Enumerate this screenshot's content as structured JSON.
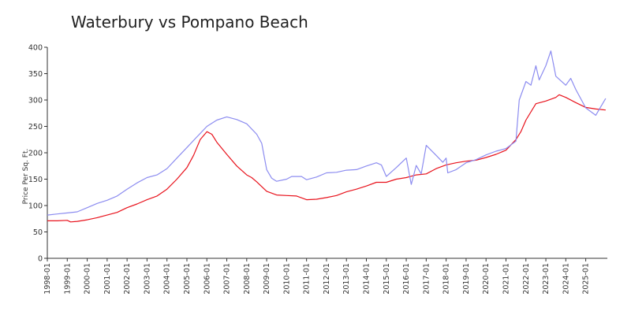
{
  "chart_data": {
    "type": "line",
    "title": "Waterbury vs Pompano Beach",
    "ylabel": "Price Per Sq. Ft.",
    "xlabel": "",
    "ylim": [
      0,
      400
    ],
    "yticks": [
      "0",
      "50",
      "100",
      "150",
      "200",
      "250",
      "300",
      "350",
      "400"
    ],
    "xlim": [
      "1998-01",
      "2026-02"
    ],
    "xticks": [
      "1998-01",
      "1999-01",
      "2000-01",
      "2001-01",
      "2002-01",
      "2003-01",
      "2004-01",
      "2005-01",
      "2006-01",
      "2007-01",
      "2008-01",
      "2009-01",
      "2010-01",
      "2011-01",
      "2012-01",
      "2013-01",
      "2014-01",
      "2015-01",
      "2016-01",
      "2017-01",
      "2018-01",
      "2019-01",
      "2020-01",
      "2021-01",
      "2022-01",
      "2023-01",
      "2024-01",
      "2025-01"
    ],
    "grid": false,
    "legend": "none",
    "series": [
      {
        "color": "#e8121c",
        "points": [
          [
            "1998-01",
            71
          ],
          [
            "1998-07",
            71
          ],
          [
            "1999-01",
            72
          ],
          [
            "1999-03",
            69
          ],
          [
            "1999-07",
            70
          ],
          [
            "2000-01",
            73
          ],
          [
            "2000-07",
            77
          ],
          [
            "2001-01",
            82
          ],
          [
            "2001-07",
            87
          ],
          [
            "2002-01",
            96
          ],
          [
            "2002-07",
            103
          ],
          [
            "2003-01",
            111
          ],
          [
            "2003-07",
            118
          ],
          [
            "2004-01",
            131
          ],
          [
            "2004-07",
            150
          ],
          [
            "2005-01",
            172
          ],
          [
            "2005-05",
            195
          ],
          [
            "2005-09",
            225
          ],
          [
            "2006-01",
            240
          ],
          [
            "2006-04",
            235
          ],
          [
            "2006-07",
            220
          ],
          [
            "2007-01",
            197
          ],
          [
            "2007-07",
            175
          ],
          [
            "2008-01",
            158
          ],
          [
            "2008-04",
            153
          ],
          [
            "2008-07",
            145
          ],
          [
            "2009-01",
            127
          ],
          [
            "2009-07",
            120
          ],
          [
            "2010-01",
            119
          ],
          [
            "2010-07",
            118
          ],
          [
            "2011-01",
            111
          ],
          [
            "2011-07",
            112
          ],
          [
            "2012-01",
            115
          ],
          [
            "2012-07",
            119
          ],
          [
            "2013-01",
            126
          ],
          [
            "2013-07",
            131
          ],
          [
            "2014-01",
            137
          ],
          [
            "2014-07",
            144
          ],
          [
            "2015-01",
            144
          ],
          [
            "2015-07",
            150
          ],
          [
            "2016-01",
            153
          ],
          [
            "2016-07",
            158
          ],
          [
            "2017-01",
            160
          ],
          [
            "2017-07",
            170
          ],
          [
            "2018-01",
            177
          ],
          [
            "2018-07",
            181
          ],
          [
            "2019-01",
            184
          ],
          [
            "2019-07",
            186
          ],
          [
            "2020-01",
            191
          ],
          [
            "2020-07",
            197
          ],
          [
            "2021-01",
            205
          ],
          [
            "2021-07",
            225
          ],
          [
            "2021-10",
            240
          ],
          [
            "2022-01",
            262
          ],
          [
            "2022-07",
            293
          ],
          [
            "2023-01",
            298
          ],
          [
            "2023-07",
            305
          ],
          [
            "2023-09",
            310
          ],
          [
            "2024-01",
            305
          ],
          [
            "2024-07",
            295
          ],
          [
            "2025-01",
            286
          ],
          [
            "2025-07",
            283
          ],
          [
            "2026-01",
            281
          ]
        ]
      },
      {
        "color": "#8c8cf0",
        "points": [
          [
            "1998-01",
            82
          ],
          [
            "1998-07",
            84
          ],
          [
            "1999-01",
            86
          ],
          [
            "1999-07",
            88
          ],
          [
            "2000-01",
            96
          ],
          [
            "2000-07",
            104
          ],
          [
            "2001-01",
            110
          ],
          [
            "2001-07",
            118
          ],
          [
            "2002-01",
            131
          ],
          [
            "2002-07",
            143
          ],
          [
            "2003-01",
            153
          ],
          [
            "2003-07",
            158
          ],
          [
            "2004-01",
            170
          ],
          [
            "2004-07",
            190
          ],
          [
            "2005-01",
            210
          ],
          [
            "2005-07",
            230
          ],
          [
            "2006-01",
            250
          ],
          [
            "2006-07",
            262
          ],
          [
            "2007-01",
            268
          ],
          [
            "2007-07",
            263
          ],
          [
            "2008-01",
            255
          ],
          [
            "2008-07",
            235
          ],
          [
            "2008-10",
            218
          ],
          [
            "2009-01",
            168
          ],
          [
            "2009-04",
            152
          ],
          [
            "2009-07",
            146
          ],
          [
            "2010-01",
            150
          ],
          [
            "2010-04",
            155
          ],
          [
            "2010-10",
            155
          ],
          [
            "2011-01",
            149
          ],
          [
            "2011-07",
            154
          ],
          [
            "2012-01",
            162
          ],
          [
            "2012-07",
            163
          ],
          [
            "2013-01",
            167
          ],
          [
            "2013-07",
            168
          ],
          [
            "2014-01",
            175
          ],
          [
            "2014-07",
            181
          ],
          [
            "2014-10",
            177
          ],
          [
            "2015-01",
            155
          ],
          [
            "2015-07",
            172
          ],
          [
            "2016-01",
            190
          ],
          [
            "2016-04",
            140
          ],
          [
            "2016-07",
            176
          ],
          [
            "2016-10",
            160
          ],
          [
            "2017-01",
            214
          ],
          [
            "2017-07",
            195
          ],
          [
            "2017-11",
            182
          ],
          [
            "2018-01",
            190
          ],
          [
            "2018-02",
            162
          ],
          [
            "2018-07",
            168
          ],
          [
            "2019-01",
            181
          ],
          [
            "2019-07",
            187
          ],
          [
            "2020-01",
            196
          ],
          [
            "2020-07",
            203
          ],
          [
            "2021-01",
            208
          ],
          [
            "2021-07",
            222
          ],
          [
            "2021-09",
            300
          ],
          [
            "2022-01",
            335
          ],
          [
            "2022-04",
            328
          ],
          [
            "2022-07",
            365
          ],
          [
            "2022-09",
            338
          ],
          [
            "2023-01",
            365
          ],
          [
            "2023-04",
            393
          ],
          [
            "2023-07",
            345
          ],
          [
            "2024-01",
            328
          ],
          [
            "2024-04",
            341
          ],
          [
            "2024-07",
            320
          ],
          [
            "2025-01",
            285
          ],
          [
            "2025-07",
            271
          ],
          [
            "2026-01",
            303
          ]
        ]
      }
    ]
  }
}
